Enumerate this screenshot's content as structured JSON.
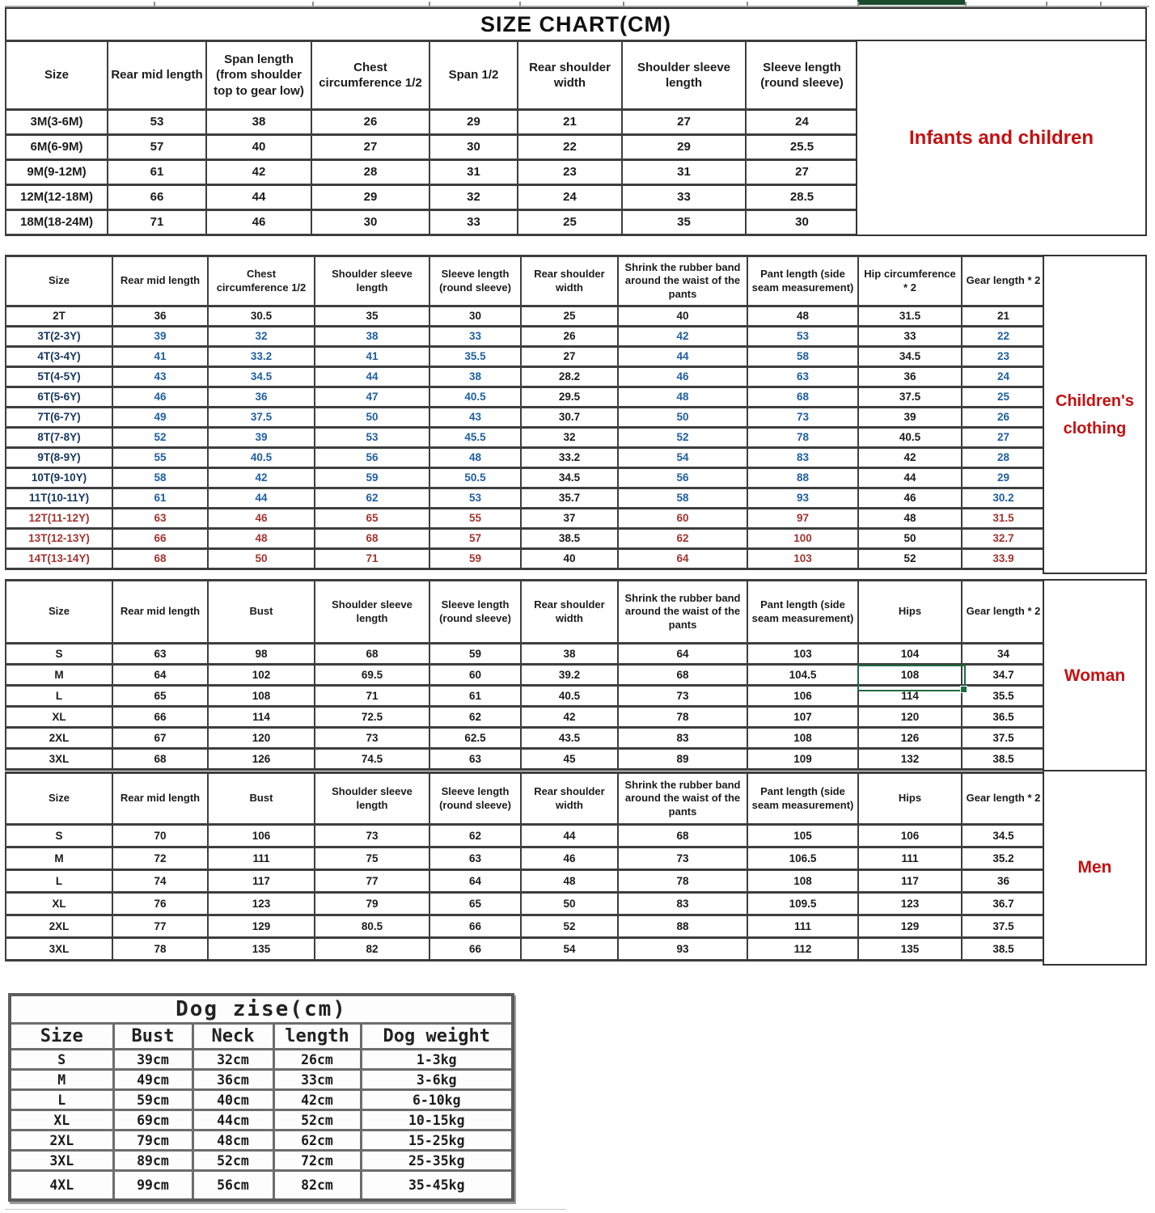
{
  "title": "SIZE CHART(CM)",
  "side_labels": {
    "infants": "Infants and children",
    "children": "Children's clothing",
    "woman": "Woman",
    "men": "Men"
  },
  "colors": {
    "size": {
      "black": "#1b1b1b",
      "blue": "#17375d",
      "red": "#a33530"
    },
    "value": {
      "black": "#1b1b1b",
      "blue": "#1f5fa0",
      "red": "#a33530"
    },
    "label_red": "#c41111",
    "selection_green": "#1e6b41",
    "top_bar_green": "#1b4b2e"
  },
  "selection": {
    "selected_cell_value": "108",
    "table": "woman",
    "row": "M",
    "column": "Hips"
  },
  "tables": {
    "infants": {
      "headers": [
        "Size",
        "Rear mid length",
        "Span length (from shoulder top to gear low)",
        "Chest circumference 1/2",
        "Span 1/2",
        "Rear shoulder width",
        "Shoulder sleeve length",
        "Sleeve length (round sleeve)"
      ],
      "rows": [
        {
          "size": "3M(3-6M)",
          "tone": "black",
          "values": [
            "53",
            "38",
            "26",
            "29",
            "21",
            "27",
            "24"
          ]
        },
        {
          "size": "6M(6-9M)",
          "tone": "black",
          "values": [
            "57",
            "40",
            "27",
            "30",
            "22",
            "29",
            "25.5"
          ]
        },
        {
          "size": "9M(9-12M)",
          "tone": "black",
          "values": [
            "61",
            "42",
            "28",
            "31",
            "23",
            "31",
            "27"
          ]
        },
        {
          "size": "12M(12-18M)",
          "tone": "black",
          "values": [
            "66",
            "44",
            "29",
            "32",
            "24",
            "33",
            "28.5"
          ]
        },
        {
          "size": "18M(18-24M)",
          "tone": "black",
          "values": [
            "71",
            "46",
            "30",
            "33",
            "25",
            "35",
            "30"
          ]
        }
      ]
    },
    "children": {
      "headers": [
        "Size",
        "Rear mid length",
        "Chest circumference 1/2",
        "Shoulder sleeve length",
        "Sleeve length (round sleeve)",
        "Rear shoulder width",
        "Shrink the rubber band around the waist of the pants",
        "Pant length (side seam measurement)",
        "Hip circumference * 2",
        "Gear length * 2"
      ],
      "black_value_columns": [
        4,
        7
      ],
      "rows": [
        {
          "size": "2T",
          "tone": "black",
          "values": [
            "36",
            "30.5",
            "35",
            "30",
            "25",
            "40",
            "48",
            "31.5",
            "21"
          ]
        },
        {
          "size": "3T(2-3Y)",
          "tone": "blue",
          "values": [
            "39",
            "32",
            "38",
            "33",
            "26",
            "42",
            "53",
            "33",
            "22"
          ]
        },
        {
          "size": "4T(3-4Y)",
          "tone": "blue",
          "values": [
            "41",
            "33.2",
            "41",
            "35.5",
            "27",
            "44",
            "58",
            "34.5",
            "23"
          ]
        },
        {
          "size": "5T(4-5Y)",
          "tone": "blue",
          "values": [
            "43",
            "34.5",
            "44",
            "38",
            "28.2",
            "46",
            "63",
            "36",
            "24"
          ]
        },
        {
          "size": "6T(5-6Y)",
          "tone": "blue",
          "values": [
            "46",
            "36",
            "47",
            "40.5",
            "29.5",
            "48",
            "68",
            "37.5",
            "25"
          ]
        },
        {
          "size": "7T(6-7Y)",
          "tone": "blue",
          "values": [
            "49",
            "37.5",
            "50",
            "43",
            "30.7",
            "50",
            "73",
            "39",
            "26"
          ]
        },
        {
          "size": "8T(7-8Y)",
          "tone": "blue",
          "values": [
            "52",
            "39",
            "53",
            "45.5",
            "32",
            "52",
            "78",
            "40.5",
            "27"
          ]
        },
        {
          "size": "9T(8-9Y)",
          "tone": "blue",
          "values": [
            "55",
            "40.5",
            "56",
            "48",
            "33.2",
            "54",
            "83",
            "42",
            "28"
          ]
        },
        {
          "size": "10T(9-10Y)",
          "tone": "blue",
          "values": [
            "58",
            "42",
            "59",
            "50.5",
            "34.5",
            "56",
            "88",
            "44",
            "29"
          ]
        },
        {
          "size": "11T(10-11Y)",
          "tone": "blue",
          "values": [
            "61",
            "44",
            "62",
            "53",
            "35.7",
            "58",
            "93",
            "46",
            "30.2"
          ]
        },
        {
          "size": "12T(11-12Y)",
          "tone": "red",
          "values": [
            "63",
            "46",
            "65",
            "55",
            "37",
            "60",
            "97",
            "48",
            "31.5"
          ]
        },
        {
          "size": "13T(12-13Y)",
          "tone": "red",
          "values": [
            "66",
            "48",
            "68",
            "57",
            "38.5",
            "62",
            "100",
            "50",
            "32.7"
          ]
        },
        {
          "size": "14T(13-14Y)",
          "tone": "red",
          "values": [
            "68",
            "50",
            "71",
            "59",
            "40",
            "64",
            "103",
            "52",
            "33.9"
          ]
        }
      ]
    },
    "woman": {
      "headers": [
        "Size",
        "Rear mid length",
        "Bust",
        "Shoulder sleeve length",
        "Sleeve length (round sleeve)",
        "Rear shoulder width",
        "Shrink the rubber band around the waist of the pants",
        "Pant length (side seam measurement)",
        "Hips",
        "Gear length * 2"
      ],
      "rows": [
        {
          "size": "S",
          "tone": "black",
          "values": [
            "63",
            "98",
            "68",
            "59",
            "38",
            "64",
            "103",
            "104",
            "34"
          ]
        },
        {
          "size": "M",
          "tone": "black",
          "values": [
            "64",
            "102",
            "69.5",
            "60",
            "39.2",
            "68",
            "104.5",
            "108",
            "34.7"
          ]
        },
        {
          "size": "L",
          "tone": "black",
          "values": [
            "65",
            "108",
            "71",
            "61",
            "40.5",
            "73",
            "106",
            "114",
            "35.5"
          ]
        },
        {
          "size": "XL",
          "tone": "black",
          "values": [
            "66",
            "114",
            "72.5",
            "62",
            "42",
            "78",
            "107",
            "120",
            "36.5"
          ]
        },
        {
          "size": "2XL",
          "tone": "black",
          "values": [
            "67",
            "120",
            "73",
            "62.5",
            "43.5",
            "83",
            "108",
            "126",
            "37.5"
          ]
        },
        {
          "size": "3XL",
          "tone": "black",
          "values": [
            "68",
            "126",
            "74.5",
            "63",
            "45",
            "89",
            "109",
            "132",
            "38.5"
          ]
        }
      ]
    },
    "men": {
      "headers": [
        "Size",
        "Rear mid length",
        "Bust",
        "Shoulder sleeve length",
        "Sleeve length (round sleeve)",
        "Rear shoulder width",
        "Shrink the rubber band around the waist of the pants",
        "Pant length (side seam measurement)",
        "Hips",
        "Gear length * 2"
      ],
      "rows": [
        {
          "size": "S",
          "tone": "black",
          "values": [
            "70",
            "106",
            "73",
            "62",
            "44",
            "68",
            "105",
            "106",
            "34.5"
          ]
        },
        {
          "size": "M",
          "tone": "black",
          "values": [
            "72",
            "111",
            "75",
            "63",
            "46",
            "73",
            "106.5",
            "111",
            "35.2"
          ]
        },
        {
          "size": "L",
          "tone": "black",
          "values": [
            "74",
            "117",
            "77",
            "64",
            "48",
            "78",
            "108",
            "117",
            "36"
          ]
        },
        {
          "size": "XL",
          "tone": "black",
          "values": [
            "76",
            "123",
            "79",
            "65",
            "50",
            "83",
            "109.5",
            "123",
            "36.7"
          ]
        },
        {
          "size": "2XL",
          "tone": "black",
          "values": [
            "77",
            "129",
            "80.5",
            "66",
            "52",
            "88",
            "111",
            "129",
            "37.5"
          ]
        },
        {
          "size": "3XL",
          "tone": "black",
          "values": [
            "78",
            "135",
            "82",
            "66",
            "54",
            "93",
            "112",
            "135",
            "38.5"
          ]
        }
      ]
    },
    "dog": {
      "title": "Dog zise(cm)",
      "headers": [
        "Size",
        "Bust",
        "Neck",
        "length",
        "Dog weight"
      ],
      "rows": [
        {
          "size": "S",
          "tone": "black",
          "values": [
            "39cm",
            "32cm",
            "26cm",
            "1-3kg"
          ]
        },
        {
          "size": "M",
          "tone": "black",
          "values": [
            "49cm",
            "36cm",
            "33cm",
            "3-6kg"
          ]
        },
        {
          "size": "L",
          "tone": "black",
          "values": [
            "59cm",
            "40cm",
            "42cm",
            "6-10kg"
          ]
        },
        {
          "size": "XL",
          "tone": "black",
          "values": [
            "69cm",
            "44cm",
            "52cm",
            "10-15kg"
          ]
        },
        {
          "size": "2XL",
          "tone": "black",
          "values": [
            "79cm",
            "48cm",
            "62cm",
            "15-25kg"
          ]
        },
        {
          "size": "3XL",
          "tone": "black",
          "values": [
            "89cm",
            "52cm",
            "72cm",
            "25-35kg"
          ]
        },
        {
          "size": "4XL",
          "tone": "black",
          "values": [
            "99cm",
            "56cm",
            "82cm",
            "35-45kg"
          ]
        }
      ]
    }
  }
}
